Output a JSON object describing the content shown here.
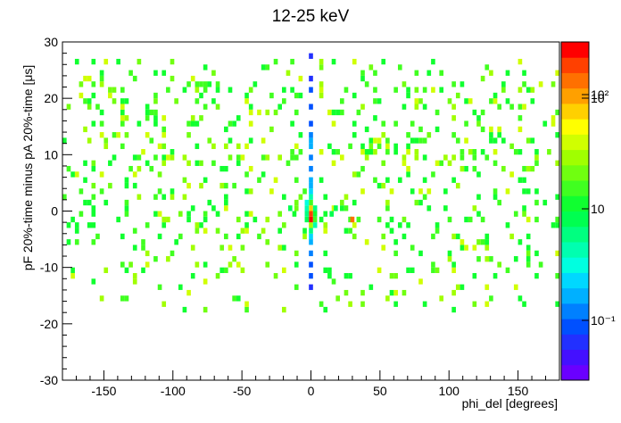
{
  "chart_data": {
    "type": "heatmap",
    "title": "12-25 keV",
    "xlabel": "phi_del [degrees]",
    "ylabel": "pF 20%-time minus pA 20%-time [μs]",
    "xlim": [
      -180,
      180
    ],
    "ylim": [
      -30,
      30
    ],
    "x_ticks": [
      -150,
      -100,
      -50,
      0,
      50,
      100,
      150
    ],
    "y_ticks": [
      -30,
      -20,
      -10,
      0,
      10,
      20,
      30
    ],
    "colorbar": {
      "scale": "log",
      "tick_labels": [
        "10²",
        "10",
        "10⁻¹"
      ],
      "colors": [
        "#6a00ff",
        "#4410ff",
        "#2230ff",
        "#0050ff",
        "#0080ff",
        "#00b0ff",
        "#00d8ff",
        "#00ffe0",
        "#00ffb0",
        "#00ff80",
        "#00ff50",
        "#10ff30",
        "#40ff20",
        "#70ff10",
        "#a0ff00",
        "#d0ff00",
        "#ffff00",
        "#ffd000",
        "#ffa000",
        "#ff7000",
        "#ff4000",
        "#ff0000"
      ]
    },
    "cell_size": {
      "x": 3,
      "y": 1
    },
    "background_density": 0.13,
    "central_column": [
      {
        "x": 0,
        "y": -14,
        "level": 2
      },
      {
        "x": 0,
        "y": -12,
        "level": 3
      },
      {
        "x": 0,
        "y": -10,
        "level": 3
      },
      {
        "x": 0,
        "y": -8,
        "level": 4
      },
      {
        "x": 0,
        "y": -6,
        "level": 5
      },
      {
        "x": 0,
        "y": -5,
        "level": 6
      },
      {
        "x": 0,
        "y": -4,
        "level": 9
      },
      {
        "x": 0,
        "y": -3,
        "level": 14
      },
      {
        "x": 0,
        "y": -2,
        "level": 21
      },
      {
        "x": 0,
        "y": -1,
        "level": 20
      },
      {
        "x": 0,
        "y": 0,
        "level": 17
      },
      {
        "x": 0,
        "y": 1,
        "level": 12
      },
      {
        "x": 0,
        "y": 2,
        "level": 8
      },
      {
        "x": 0,
        "y": 3,
        "level": 6
      },
      {
        "x": 0,
        "y": 4,
        "level": 5
      },
      {
        "x": 0,
        "y": 5,
        "level": 5
      },
      {
        "x": 0,
        "y": 7,
        "level": 4
      },
      {
        "x": 0,
        "y": 9,
        "level": 4
      },
      {
        "x": 0,
        "y": 11,
        "level": 5
      },
      {
        "x": 0,
        "y": 12,
        "level": 5
      },
      {
        "x": 0,
        "y": 13,
        "level": 4
      },
      {
        "x": 0,
        "y": 15,
        "level": 3
      },
      {
        "x": 0,
        "y": 18,
        "level": 3
      },
      {
        "x": 0,
        "y": 21,
        "level": 3
      },
      {
        "x": 0,
        "y": 23,
        "level": 2
      },
      {
        "x": 0,
        "y": 27,
        "level": 2
      },
      {
        "x": -3,
        "y": -2,
        "level": 10
      },
      {
        "x": -3,
        "y": -1,
        "level": 9
      },
      {
        "x": -3,
        "y": 0,
        "level": 8
      },
      {
        "x": -3,
        "y": 1,
        "level": 7
      },
      {
        "x": 3,
        "y": -2,
        "level": 12
      },
      {
        "x": 3,
        "y": -1,
        "level": 11
      },
      {
        "x": 3,
        "y": 0,
        "level": 9
      },
      {
        "x": 3,
        "y": -3,
        "level": 8
      },
      {
        "x": -12,
        "y": -1,
        "level": 11
      },
      {
        "x": -15,
        "y": 0,
        "level": 10
      },
      {
        "x": 15,
        "y": -1,
        "level": 10
      },
      {
        "x": 18,
        "y": 0,
        "level": 10
      },
      {
        "x": 30,
        "y": -2,
        "level": 19
      }
    ]
  }
}
